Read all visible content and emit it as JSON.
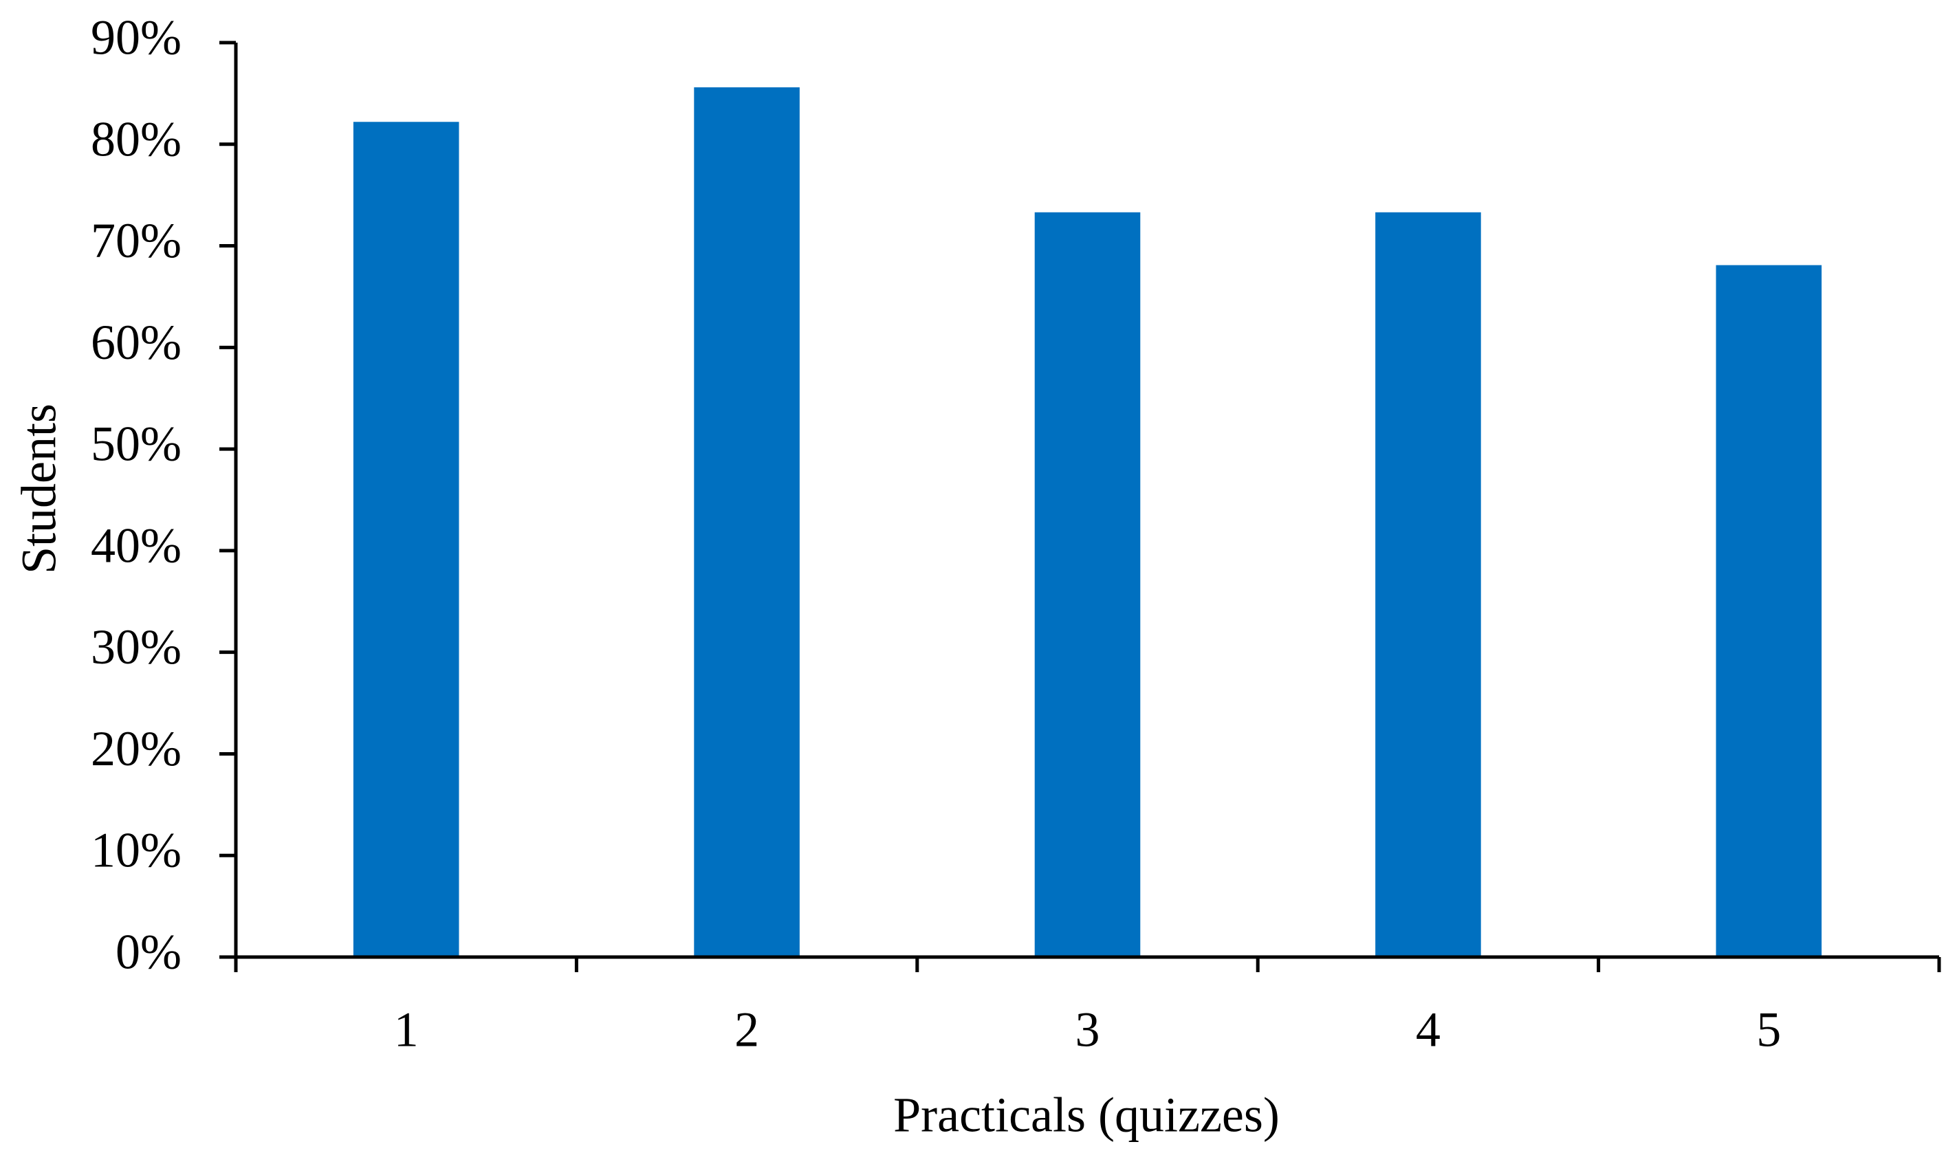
{
  "chart_data": {
    "type": "bar",
    "x_label": "Practicals (quizzes)",
    "y_label": "Students",
    "categories": [
      "1",
      "2",
      "3",
      "4",
      "5"
    ],
    "values": [
      82.2,
      85.6,
      73.3,
      73.3,
      68.1
    ],
    "color": "#0070c0",
    "ylim": [
      0,
      90
    ],
    "yticks": [
      {
        "value": 0,
        "label": "0%"
      },
      {
        "value": 10,
        "label": "10%"
      },
      {
        "value": 20,
        "label": "20%"
      },
      {
        "value": 30,
        "label": "30%"
      },
      {
        "value": 40,
        "label": "40%"
      },
      {
        "value": 50,
        "label": "50%"
      },
      {
        "value": 60,
        "label": "60%"
      },
      {
        "value": 70,
        "label": "70%"
      },
      {
        "value": 80,
        "label": "80%"
      },
      {
        "value": 90,
        "label": "90%"
      }
    ],
    "grid": false
  }
}
